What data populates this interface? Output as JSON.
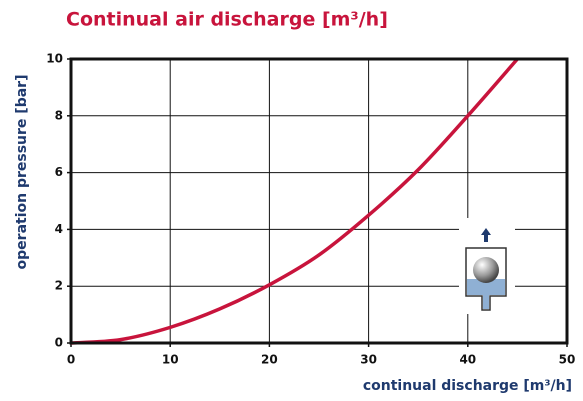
{
  "chart_data": {
    "type": "line",
    "title": "Continual air discharge [m³/h]",
    "x_label": "continual discharge [m³/h]",
    "y_label": "operation pressure [bar]",
    "x": [
      0,
      5,
      10,
      15,
      20,
      25,
      30,
      35,
      40,
      45
    ],
    "series": [
      {
        "name": "operation pressure",
        "color": "#c8143c",
        "values": [
          0,
          0.12,
          0.55,
          1.2,
          2.05,
          3.1,
          4.5,
          6.1,
          8.0,
          10.0
        ]
      }
    ],
    "xlim": [
      0,
      50
    ],
    "xticks": [
      0,
      10,
      20,
      30,
      40,
      50
    ],
    "ylim": [
      0,
      10
    ],
    "yticks": [
      0,
      2,
      4,
      6,
      8,
      10
    ],
    "grid": true
  }
}
